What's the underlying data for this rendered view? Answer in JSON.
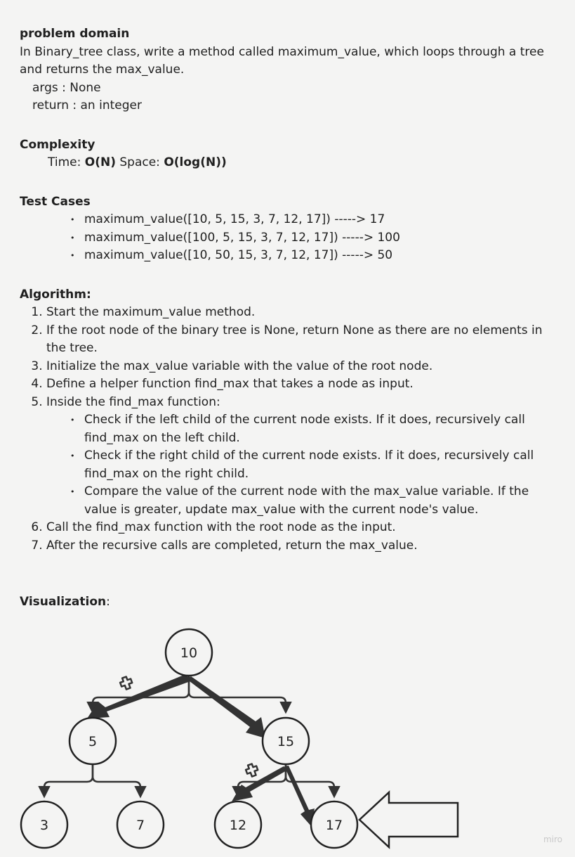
{
  "problem": {
    "heading": "problem domain",
    "text": "In Binary_tree class, write a method called maximum_value, which loops through a tree and returns the max_value.",
    "args": "args : None",
    "returns": "return : an integer"
  },
  "complexity": {
    "heading": "Complexity",
    "time_label": "Time:",
    "time_value": "O(N)",
    "space_label": "Space:",
    "space_value": "O(log(N))"
  },
  "tests": {
    "heading": "Test Cases",
    "items": [
      "maximum_value([10, 5, 15, 3, 7, 12, 17]) -----> 17",
      "maximum_value([100, 5, 15, 3, 7, 12, 17]) -----> 100",
      "maximum_value([10, 50, 15, 3, 7, 12, 17]) -----> 50"
    ]
  },
  "algorithm": {
    "heading": "Algorithm:",
    "steps": [
      "Start the maximum_value method.",
      "If the root node of the binary tree is None, return None as there are no elements in the tree.",
      "Initialize the max_value variable with the value of the root node.",
      "Define a helper function find_max that takes a node as input.",
      "Inside the find_max function:",
      "Call the find_max function with the root node as the input.",
      "After the recursive calls are completed, return the max_value."
    ],
    "substeps": [
      "Check if the left child of the current node exists. If it does, recursively call find_max on the left child.",
      "Check if the right child of the current node exists. If it does, recursively call find_max on the right child.",
      "Compare the value of the current node with the max_value variable. If the value is greater, update max_value with the current node's value."
    ]
  },
  "visualization": {
    "heading": "Visualization",
    "colon": ":",
    "nodes": [
      "10",
      "5",
      "15",
      "3",
      "7",
      "12",
      "17"
    ],
    "watermark": "miro",
    "colors": {
      "stroke": "#222222",
      "thick_arrow": "#333333"
    }
  }
}
